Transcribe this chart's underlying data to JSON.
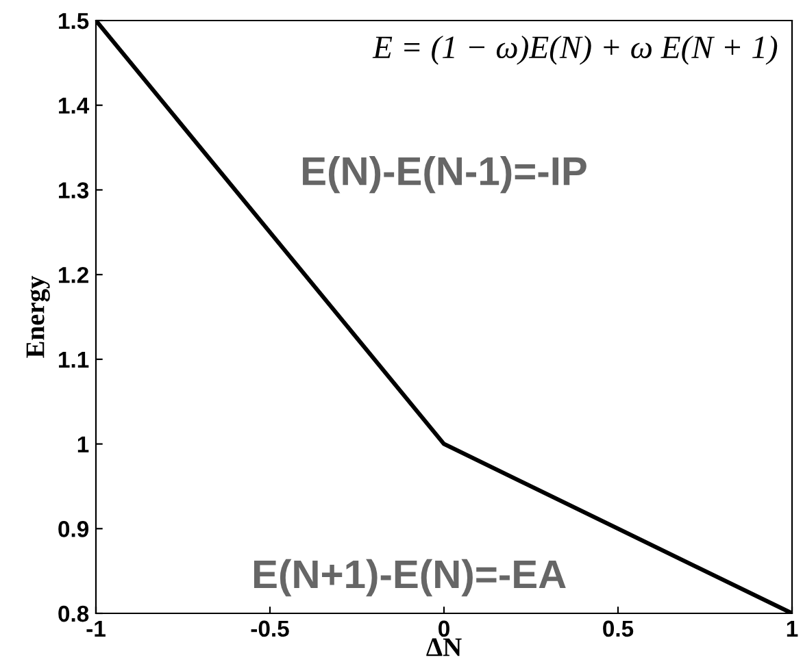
{
  "chart_data": {
    "type": "line",
    "xlabel": "ΔN",
    "ylabel": "Energy",
    "x": [
      -1,
      0,
      1
    ],
    "series": [
      {
        "color": "#000000",
        "values": [
          1.5,
          1.0,
          0.8
        ]
      }
    ],
    "xlim": [
      -1,
      1
    ],
    "xticks": [
      -1,
      -0.5,
      0,
      0.5,
      1
    ],
    "ylim": [
      0.8,
      1.5
    ],
    "yticks": [
      0.8,
      0.9,
      1,
      1.1,
      1.2,
      1.3,
      1.4,
      1.5
    ],
    "grid": false,
    "legend": false,
    "marker": "none",
    "line_style": "solid",
    "annotations": [
      "E = (1 − ω)E(N) + ω E(N + 1)",
      "E(N)-E(N-1)=-IP",
      "E(N+1)-E(N)=-EA"
    ]
  }
}
